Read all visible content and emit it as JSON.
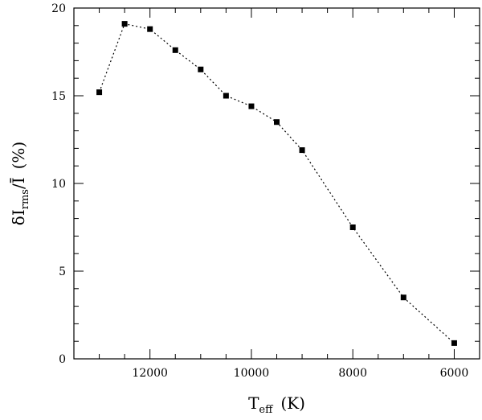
{
  "chart_data": {
    "type": "line",
    "xlabel": {
      "main": "T",
      "sub": "eff",
      "unit": "(K)"
    },
    "ylabel": {
      "pre": "δI",
      "sub": "rms",
      "mid": "/Ī",
      "unit": "(%)"
    },
    "xlim": [
      13500,
      5500
    ],
    "ylim": [
      0,
      20
    ],
    "x_ticks": [
      12000,
      10000,
      8000,
      6000
    ],
    "y_ticks": [
      0,
      5,
      10,
      15,
      20
    ],
    "x_minor_step": 500,
    "y_minor_step": 1,
    "grid": false,
    "marker": "square",
    "line_style": "dotted",
    "series": [
      {
        "x": [
          13000,
          12500,
          12000,
          11500,
          11000,
          10500,
          10000,
          9500,
          9000,
          8000,
          7000,
          6000
        ],
        "y": [
          15.2,
          19.1,
          18.8,
          17.6,
          16.5,
          15.0,
          14.4,
          13.5,
          11.9,
          7.5,
          3.5,
          0.9
        ]
      }
    ]
  }
}
